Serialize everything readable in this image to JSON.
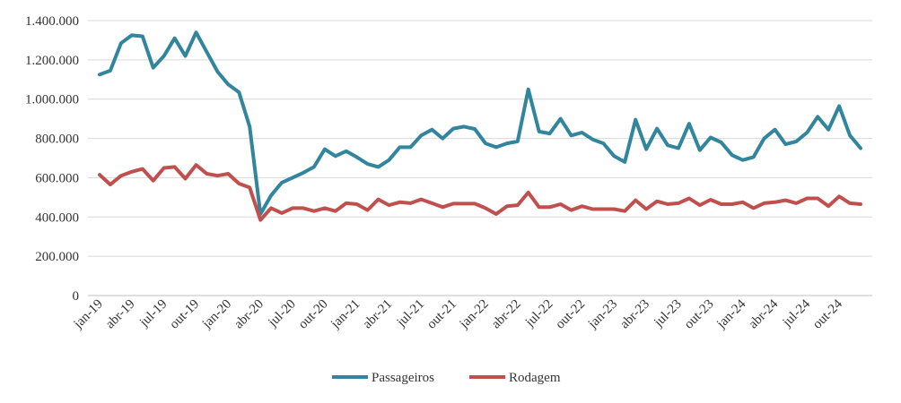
{
  "chart_data": {
    "type": "line",
    "title": "",
    "xlabel": "",
    "ylabel": "",
    "ylim": [
      0,
      1400000
    ],
    "yticks": [
      0,
      200000,
      400000,
      600000,
      800000,
      1000000,
      1200000,
      1400000
    ],
    "ytick_labels": [
      "0",
      "200.000",
      "400.000",
      "600.000",
      "800.000",
      "1.000.000",
      "1.200.000",
      "1.400.000"
    ],
    "grid": true,
    "legend_position": "bottom",
    "x": [
      "jan-19",
      "fev-19",
      "mar-19",
      "abr-19",
      "mai-19",
      "jun-19",
      "jul-19",
      "ago-19",
      "set-19",
      "out-19",
      "nov-19",
      "dez-19",
      "jan-20",
      "fev-20",
      "mar-20",
      "abr-20",
      "mai-20",
      "jun-20",
      "jul-20",
      "ago-20",
      "set-20",
      "out-20",
      "nov-20",
      "dez-20",
      "jan-21",
      "fev-21",
      "mar-21",
      "abr-21",
      "mai-21",
      "jun-21",
      "jul-21",
      "ago-21",
      "set-21",
      "out-21",
      "nov-21",
      "dez-21",
      "jan-22",
      "fev-22",
      "mar-22",
      "abr-22",
      "mai-22",
      "jun-22",
      "jul-22",
      "ago-22",
      "set-22",
      "out-22",
      "nov-22",
      "dez-22",
      "jan-23",
      "fev-23",
      "mar-23",
      "abr-23",
      "mai-23",
      "jun-23",
      "jul-23",
      "ago-23",
      "set-23",
      "out-23",
      "nov-23",
      "dez-23",
      "jan-24",
      "fev-24",
      "mar-24",
      "abr-24",
      "mai-24",
      "jun-24",
      "jul-24",
      "ago-24",
      "set-24",
      "out-24",
      "nov-24",
      "dez-24"
    ],
    "xtick_labels": [
      "jan-19",
      "abr-19",
      "jul-19",
      "out-19",
      "jan-20",
      "abr-20",
      "jul-20",
      "out-20",
      "jan-21",
      "abr-21",
      "jul-21",
      "out-21",
      "jan-22",
      "abr-22",
      "jul-22",
      "out-22",
      "jan-23",
      "abr-23",
      "jul-23",
      "out-23",
      "jan-24",
      "abr-24",
      "jul-24",
      "out-24"
    ],
    "series": [
      {
        "name": "Passageiros",
        "color": "#31859c",
        "values": [
          1125000,
          1145000,
          1285000,
          1325000,
          1320000,
          1160000,
          1220000,
          1310000,
          1220000,
          1340000,
          1240000,
          1140000,
          1075000,
          1035000,
          860000,
          415000,
          510000,
          575000,
          600000,
          625000,
          655000,
          745000,
          710000,
          735000,
          705000,
          670000,
          655000,
          690000,
          755000,
          755000,
          815000,
          845000,
          800000,
          850000,
          860000,
          848000,
          775000,
          755000,
          775000,
          785000,
          1050000,
          835000,
          825000,
          900000,
          815000,
          830000,
          795000,
          775000,
          710000,
          680000,
          895000,
          745000,
          850000,
          765000,
          750000,
          875000,
          740000,
          805000,
          780000,
          715000,
          690000,
          705000,
          800000,
          845000,
          770000,
          785000,
          830000,
          910000,
          845000,
          965000,
          815000,
          750000
        ]
      },
      {
        "name": "Rodagem",
        "color": "#c0504d",
        "values": [
          615000,
          565000,
          610000,
          630000,
          645000,
          585000,
          650000,
          655000,
          595000,
          665000,
          620000,
          610000,
          620000,
          570000,
          550000,
          385000,
          445000,
          420000,
          445000,
          445000,
          430000,
          445000,
          430000,
          470000,
          465000,
          435000,
          490000,
          460000,
          475000,
          470000,
          490000,
          470000,
          450000,
          468000,
          468000,
          468000,
          445000,
          415000,
          455000,
          460000,
          525000,
          450000,
          450000,
          465000,
          435000,
          455000,
          440000,
          440000,
          440000,
          430000,
          485000,
          440000,
          480000,
          465000,
          470000,
          495000,
          460000,
          488000,
          465000,
          465000,
          475000,
          445000,
          470000,
          475000,
          485000,
          470000,
          495000,
          495000,
          455000,
          505000,
          470000,
          465000
        ]
      }
    ]
  }
}
